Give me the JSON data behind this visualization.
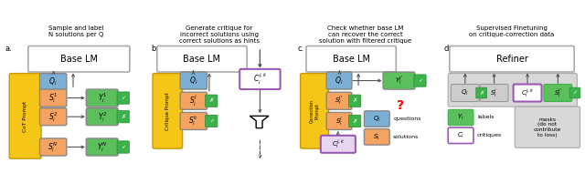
{
  "bg_color": "#ffffff",
  "panel_titles": [
    "Sample and label\nN solutions per Q",
    "Generate critique for\nincorrect solutions using\ncorrect solutions as hints",
    "Check whether base LM\ncan recover the correct\nsolution with filtered critique",
    "Supervised Finetuning\non critique-correction data"
  ],
  "panel_labels": [
    "a.",
    "b.",
    "c.",
    "d."
  ],
  "colors": {
    "blue": "#7bafd4",
    "orange": "#f4a460",
    "green": "#5bbf5b",
    "purple": "#9b59b6",
    "yellow_bg": "#f5c518",
    "gray_bg": "#cccccc",
    "white": "#ffffff",
    "text": "#222222",
    "arrow": "#555555",
    "border_lm": "#aaaaaa",
    "border_yellow": "#cc9900",
    "check_green": "#3cb34a",
    "check_border": "#2a8a35",
    "mask_bg": "#d8d8d8"
  }
}
